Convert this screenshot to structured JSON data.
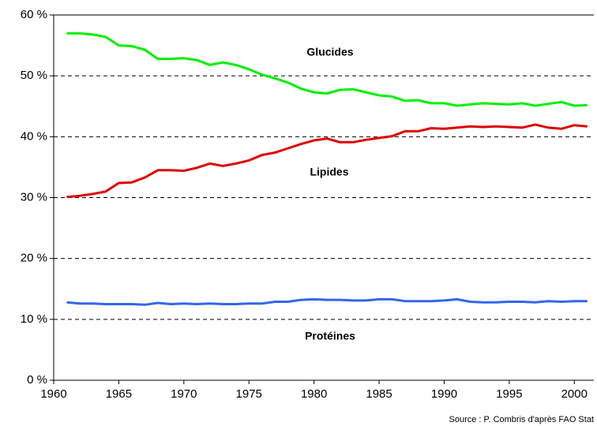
{
  "chart_data": {
    "type": "line",
    "x": [
      1961,
      1962,
      1963,
      1964,
      1965,
      1966,
      1967,
      1968,
      1969,
      1970,
      1971,
      1972,
      1973,
      1974,
      1975,
      1976,
      1977,
      1978,
      1979,
      1980,
      1981,
      1982,
      1983,
      1984,
      1985,
      1986,
      1987,
      1988,
      1989,
      1990,
      1991,
      1992,
      1993,
      1994,
      1995,
      1996,
      1997,
      1998,
      1999,
      2000,
      2001
    ],
    "series": [
      {
        "name": "Glucides",
        "color": "#00ee00",
        "values": [
          57.0,
          57.0,
          56.8,
          56.4,
          55.0,
          54.9,
          54.3,
          52.8,
          52.8,
          52.9,
          52.6,
          51.8,
          52.2,
          51.8,
          51.1,
          50.2,
          49.6,
          48.9,
          47.9,
          47.3,
          47.1,
          47.7,
          47.8,
          47.3,
          46.8,
          46.6,
          45.9,
          46.0,
          45.5,
          45.5,
          45.1,
          45.3,
          45.5,
          45.4,
          45.3,
          45.5,
          45.1,
          45.4,
          45.7,
          45.1,
          45.2
        ]
      },
      {
        "name": "Lipides",
        "color": "#dd0000",
        "values": [
          30.1,
          30.3,
          30.6,
          31.0,
          32.4,
          32.5,
          33.3,
          34.5,
          34.5,
          34.4,
          34.9,
          35.6,
          35.2,
          35.6,
          36.1,
          37.0,
          37.4,
          38.1,
          38.8,
          39.4,
          39.7,
          39.1,
          39.1,
          39.5,
          39.8,
          40.1,
          40.9,
          40.9,
          41.4,
          41.3,
          41.5,
          41.7,
          41.6,
          41.7,
          41.6,
          41.5,
          42.0,
          41.5,
          41.3,
          41.9,
          41.7
        ]
      },
      {
        "name": "Protéines",
        "color": "#3366ee",
        "values": [
          12.8,
          12.6,
          12.6,
          12.5,
          12.5,
          12.5,
          12.4,
          12.7,
          12.5,
          12.6,
          12.5,
          12.6,
          12.5,
          12.5,
          12.6,
          12.6,
          12.9,
          12.9,
          13.2,
          13.3,
          13.2,
          13.2,
          13.1,
          13.1,
          13.3,
          13.3,
          13.0,
          13.0,
          13.0,
          13.1,
          13.3,
          12.9,
          12.8,
          12.8,
          12.9,
          12.9,
          12.8,
          13.0,
          12.9,
          13.0,
          13.0
        ]
      }
    ],
    "xlim": [
      1960,
      2001.5
    ],
    "xticks": [
      1960,
      1965,
      1970,
      1975,
      1980,
      1985,
      1990,
      1995,
      2000
    ],
    "ylim": [
      0,
      60
    ],
    "yticks": [
      {
        "value": 0,
        "label": "0 %"
      },
      {
        "value": 10,
        "label": "10 %"
      },
      {
        "value": 20,
        "label": "20 %"
      },
      {
        "value": 30,
        "label": "30 %"
      },
      {
        "value": 40,
        "label": "40 %"
      },
      {
        "value": 50,
        "label": "50 %"
      },
      {
        "value": 60,
        "label": "60 %"
      }
    ],
    "grid": true,
    "source": "Source : P. Combris d'après FAO Stat"
  }
}
